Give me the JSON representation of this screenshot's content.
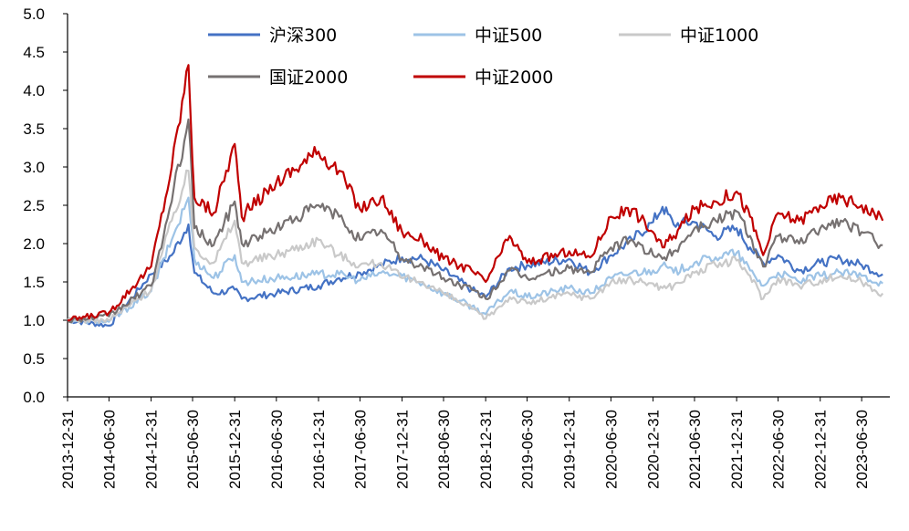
{
  "chart_data": {
    "type": "line",
    "title": "",
    "xlabel": "",
    "ylabel": "",
    "ylim": [
      0,
      5
    ],
    "yticks": [
      "0.0",
      "0.5",
      "1.0",
      "1.5",
      "2.0",
      "2.5",
      "3.0",
      "3.5",
      "4.0",
      "4.5",
      "5.0"
    ],
    "xticks": [
      "2013-12-31",
      "2014-06-30",
      "2014-12-31",
      "2015-06-30",
      "2015-12-31",
      "2016-06-30",
      "2016-12-31",
      "2017-06-30",
      "2017-12-31",
      "2018-06-30",
      "2018-12-31",
      "2019-06-30",
      "2019-12-31",
      "2020-06-30",
      "2020-12-31",
      "2021-06-30",
      "2021-12-31",
      "2022-06-30",
      "2022-12-31",
      "2023-06-30"
    ],
    "grid": false,
    "legend": "top, inside plot",
    "x": [
      "2013-12-31",
      "2014-06-30",
      "2014-12-31",
      "2015-03-31",
      "2015-06-12",
      "2015-07-08",
      "2015-09-30",
      "2015-12-31",
      "2016-01-31",
      "2016-06-30",
      "2016-12-31",
      "2017-03-31",
      "2017-06-30",
      "2017-09-30",
      "2017-12-31",
      "2018-03-31",
      "2018-06-30",
      "2018-10-31",
      "2018-12-31",
      "2019-04-15",
      "2019-06-30",
      "2019-12-31",
      "2020-03-31",
      "2020-06-30",
      "2020-09-30",
      "2020-12-31",
      "2021-02-10",
      "2021-03-31",
      "2021-06-30",
      "2021-09-30",
      "2021-12-31",
      "2022-02-28",
      "2022-04-26",
      "2022-06-30",
      "2022-09-30",
      "2022-12-31",
      "2023-03-31",
      "2023-06-30",
      "2023-09-30"
    ],
    "series": [
      {
        "name": "沪深300",
        "color": "#4472C4",
        "values": [
          1.0,
          0.93,
          1.6,
          1.85,
          2.25,
          1.62,
          1.35,
          1.4,
          1.28,
          1.35,
          1.45,
          1.55,
          1.62,
          1.72,
          1.82,
          1.8,
          1.65,
          1.4,
          1.3,
          1.68,
          1.72,
          1.8,
          1.62,
          1.85,
          2.05,
          2.28,
          2.48,
          2.25,
          2.28,
          2.1,
          2.2,
          1.95,
          1.75,
          1.85,
          1.65,
          1.75,
          1.8,
          1.72,
          1.6
        ]
      },
      {
        "name": "中证500",
        "color": "#9DC3E6",
        "values": [
          1.0,
          0.98,
          1.38,
          2.05,
          2.6,
          1.8,
          1.55,
          1.85,
          1.5,
          1.55,
          1.6,
          1.6,
          1.52,
          1.62,
          1.58,
          1.48,
          1.35,
          1.18,
          1.08,
          1.38,
          1.3,
          1.42,
          1.35,
          1.55,
          1.62,
          1.65,
          1.72,
          1.62,
          1.75,
          1.82,
          1.88,
          1.65,
          1.45,
          1.62,
          1.5,
          1.58,
          1.62,
          1.58,
          1.48
        ]
      },
      {
        "name": "中证1000",
        "color": "#C9C9C9",
        "values": [
          1.0,
          1.0,
          1.4,
          2.3,
          2.95,
          1.95,
          1.75,
          2.3,
          1.75,
          1.85,
          2.05,
          1.85,
          1.72,
          1.75,
          1.55,
          1.5,
          1.35,
          1.15,
          1.02,
          1.3,
          1.22,
          1.35,
          1.28,
          1.5,
          1.52,
          1.48,
          1.42,
          1.45,
          1.62,
          1.72,
          1.78,
          1.58,
          1.28,
          1.55,
          1.45,
          1.52,
          1.58,
          1.5,
          1.35
        ]
      },
      {
        "name": "国证2000",
        "color": "#767171",
        "values": [
          1.0,
          1.05,
          1.45,
          2.55,
          3.62,
          2.2,
          1.98,
          2.55,
          2.0,
          2.2,
          2.5,
          2.35,
          2.05,
          2.18,
          1.8,
          1.7,
          1.55,
          1.4,
          1.28,
          1.65,
          1.55,
          1.68,
          1.62,
          1.95,
          2.05,
          1.85,
          1.8,
          1.9,
          2.2,
          2.3,
          2.42,
          2.1,
          1.7,
          2.1,
          2.0,
          2.2,
          2.3,
          2.15,
          1.98
        ]
      },
      {
        "name": "中证2000",
        "color": "#C00000",
        "values": [
          1.0,
          1.1,
          1.7,
          3.0,
          4.33,
          2.6,
          2.4,
          3.3,
          2.35,
          2.8,
          3.2,
          2.95,
          2.45,
          2.6,
          2.15,
          2.05,
          1.8,
          1.65,
          1.5,
          2.1,
          1.75,
          1.9,
          1.82,
          2.35,
          2.45,
          2.15,
          1.95,
          2.1,
          2.45,
          2.55,
          2.68,
          2.35,
          1.85,
          2.4,
          2.3,
          2.5,
          2.6,
          2.5,
          2.3
        ]
      }
    ]
  }
}
